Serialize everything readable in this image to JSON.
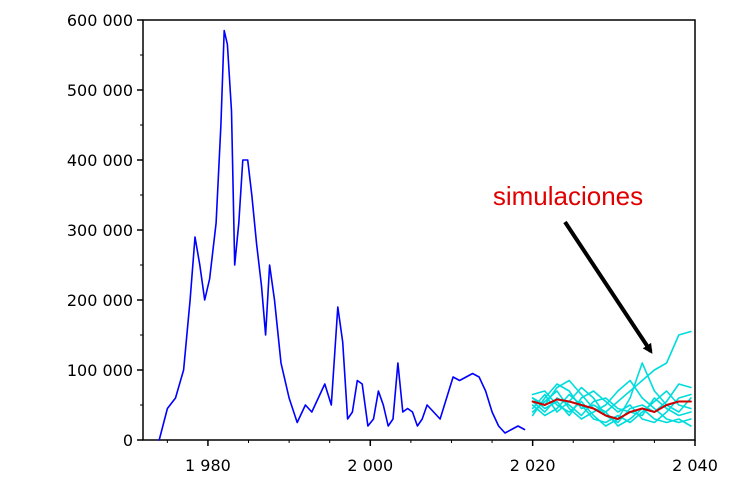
{
  "chart_data": {
    "type": "line",
    "title": "",
    "xlabel": "",
    "ylabel": "",
    "xlim": [
      1972,
      2040
    ],
    "ylim": [
      0,
      600000
    ],
    "grid": false,
    "x_ticks": [
      1980,
      2000,
      2020,
      2040
    ],
    "x_tick_labels": [
      "1 980",
      "2 000",
      "2 020",
      "2 040"
    ],
    "y_ticks": [
      0,
      100000,
      200000,
      300000,
      400000,
      500000,
      600000
    ],
    "y_tick_labels": [
      "0",
      "100 000",
      "200 000",
      "300 000",
      "400 000",
      "500 000",
      "600 000"
    ],
    "annotations": [
      {
        "text": "simulaciones",
        "color": "#e00000",
        "arrow_color": "#000000",
        "arrow_target": {
          "x": 2034.8,
          "y": 118000
        }
      }
    ],
    "series": [
      {
        "color": "#0000ff",
        "x": [
          1974,
          1975,
          1976,
          1977,
          1977.8,
          1978.4,
          1979,
          1979.6,
          1980.2,
          1981,
          1981.6,
          1982,
          1982.4,
          1982.9,
          1983.3,
          1983.8,
          1984.3,
          1984.9,
          1985.4,
          1986,
          1986.6,
          1987.1,
          1987.6,
          1988.2,
          1989,
          1990,
          1991,
          1992,
          1992.8,
          1993.6,
          1994.4,
          1995.2,
          1996,
          1996.6,
          1997.2,
          1997.8,
          1998.4,
          1999,
          1999.7,
          2000.4,
          2001,
          2001.6,
          2002.2,
          2002.8,
          2003.4,
          2004,
          2004.6,
          2005.2,
          2005.8,
          2006.4,
          2007,
          2007.8,
          2008.6,
          2009.4,
          2010.2,
          2011,
          2011.8,
          2012.6,
          2013.4,
          2014.2,
          2015,
          2015.8,
          2016.6,
          2017.4,
          2018.2,
          2019
        ],
        "y": [
          0,
          45000,
          60000,
          100000,
          200000,
          290000,
          250000,
          200000,
          230000,
          310000,
          450000,
          585000,
          565000,
          470000,
          250000,
          310000,
          400000,
          400000,
          350000,
          280000,
          220000,
          150000,
          250000,
          200000,
          110000,
          60000,
          25000,
          50000,
          40000,
          60000,
          80000,
          50000,
          190000,
          140000,
          30000,
          40000,
          85000,
          80000,
          20000,
          30000,
          70000,
          50000,
          20000,
          30000,
          110000,
          40000,
          45000,
          40000,
          20000,
          30000,
          50000,
          40000,
          30000,
          60000,
          90000,
          85000,
          90000,
          95000,
          90000,
          70000,
          40000,
          20000,
          10000,
          15000,
          20000,
          15000
        ]
      },
      {
        "color": "#00dcdc",
        "x": [
          2020,
          2021.5,
          2023,
          2024.5,
          2026,
          2027.5,
          2029,
          2030.5,
          2032,
          2033.5,
          2035,
          2036.5,
          2038,
          2039.5
        ],
        "y": [
          60000,
          50000,
          75000,
          85000,
          65000,
          45000,
          40000,
          55000,
          70000,
          85000,
          100000,
          110000,
          150000,
          155000
        ]
      },
      {
        "color": "#00dcdc",
        "x": [
          2020,
          2021.5,
          2023,
          2024.5,
          2026,
          2027.5,
          2029,
          2030.5,
          2032,
          2033.5,
          2035,
          2036.5,
          2038,
          2039.5
        ],
        "y": [
          45000,
          65000,
          40000,
          55000,
          75000,
          60000,
          35000,
          25000,
          45000,
          50000,
          40000,
          55000,
          80000,
          75000
        ]
      },
      {
        "color": "#00dcdc",
        "x": [
          2020,
          2021.5,
          2023,
          2024.5,
          2026,
          2027.5,
          2029,
          2030.5,
          2032,
          2033.5,
          2035,
          2036.5,
          2038,
          2039.5
        ],
        "y": [
          55000,
          40000,
          60000,
          50000,
          35000,
          55000,
          60000,
          45000,
          40000,
          35000,
          60000,
          45000,
          35000,
          40000
        ]
      },
      {
        "color": "#00dcdc",
        "x": [
          2020,
          2021.5,
          2023,
          2024.5,
          2026,
          2027.5,
          2029,
          2030.5,
          2032,
          2033.5,
          2035,
          2036.5,
          2038,
          2039.5
        ],
        "y": [
          40000,
          55000,
          70000,
          45000,
          30000,
          40000,
          50000,
          70000,
          85000,
          60000,
          45000,
          30000,
          25000,
          30000
        ]
      },
      {
        "color": "#00dcdc",
        "x": [
          2020,
          2021.5,
          2023,
          2024.5,
          2026,
          2027.5,
          2029,
          2030.5,
          2032,
          2033.5,
          2035,
          2036.5,
          2038,
          2039.5
        ],
        "y": [
          65000,
          70000,
          50000,
          40000,
          55000,
          35000,
          20000,
          30000,
          60000,
          110000,
          70000,
          50000,
          40000,
          60000
        ]
      },
      {
        "color": "#00dcdc",
        "x": [
          2020,
          2021.5,
          2023,
          2024.5,
          2026,
          2027.5,
          2029,
          2030.5,
          2032,
          2033.5,
          2035,
          2036.5,
          2038,
          2039.5
        ],
        "y": [
          50000,
          35000,
          45000,
          65000,
          50000,
          30000,
          25000,
          35000,
          25000,
          40000,
          55000,
          70000,
          50000,
          45000
        ]
      },
      {
        "color": "#00dcdc",
        "x": [
          2020,
          2021.5,
          2023,
          2024.5,
          2026,
          2027.5,
          2029,
          2030.5,
          2032,
          2033.5,
          2035,
          2036.5,
          2038,
          2039.5
        ],
        "y": [
          35000,
          60000,
          80000,
          70000,
          45000,
          50000,
          40000,
          20000,
          30000,
          45000,
          30000,
          25000,
          30000,
          20000
        ]
      },
      {
        "color": "#00dcdc",
        "x": [
          2020,
          2021.5,
          2023,
          2024.5,
          2026,
          2027.5,
          2029,
          2030.5,
          2032,
          2033.5,
          2035,
          2036.5,
          2038,
          2039.5
        ],
        "y": [
          60000,
          45000,
          55000,
          35000,
          60000,
          70000,
          55000,
          40000,
          50000,
          30000,
          25000,
          40000,
          60000,
          65000
        ]
      },
      {
        "color": "#cc0000",
        "x": [
          2020,
          2021.5,
          2023,
          2024.5,
          2026,
          2027.5,
          2029,
          2030.5,
          2032,
          2033.5,
          2035,
          2036.5,
          2038,
          2039.5
        ],
        "y": [
          55000,
          50000,
          58000,
          55000,
          50000,
          45000,
          35000,
          30000,
          40000,
          45000,
          40000,
          50000,
          55000,
          55000
        ]
      }
    ]
  }
}
